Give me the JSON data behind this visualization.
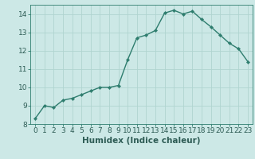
{
  "x": [
    0,
    1,
    2,
    3,
    4,
    5,
    6,
    7,
    8,
    9,
    10,
    11,
    12,
    13,
    14,
    15,
    16,
    17,
    18,
    19,
    20,
    21,
    22,
    23
  ],
  "y": [
    8.3,
    9.0,
    8.9,
    9.3,
    9.4,
    9.6,
    9.8,
    10.0,
    10.0,
    10.1,
    11.5,
    12.7,
    12.85,
    13.1,
    14.05,
    14.2,
    14.0,
    14.15,
    13.7,
    13.3,
    12.85,
    12.4,
    12.1,
    11.4
  ],
  "line_color": "#2e7d6e",
  "marker": "D",
  "markersize": 2.2,
  "linewidth": 1.0,
  "bg_color": "#cce8e6",
  "grid_color": "#b0d4d0",
  "xlabel": "Humidex (Indice chaleur)",
  "ylim": [
    8,
    14.5
  ],
  "xlim": [
    -0.5,
    23.5
  ],
  "yticks": [
    8,
    9,
    10,
    11,
    12,
    13,
    14
  ],
  "xticks": [
    0,
    1,
    2,
    3,
    4,
    5,
    6,
    7,
    8,
    9,
    10,
    11,
    12,
    13,
    14,
    15,
    16,
    17,
    18,
    19,
    20,
    21,
    22,
    23
  ],
  "xlabel_fontsize": 7.5,
  "tick_fontsize": 6.5,
  "text_color": "#2e5c55"
}
